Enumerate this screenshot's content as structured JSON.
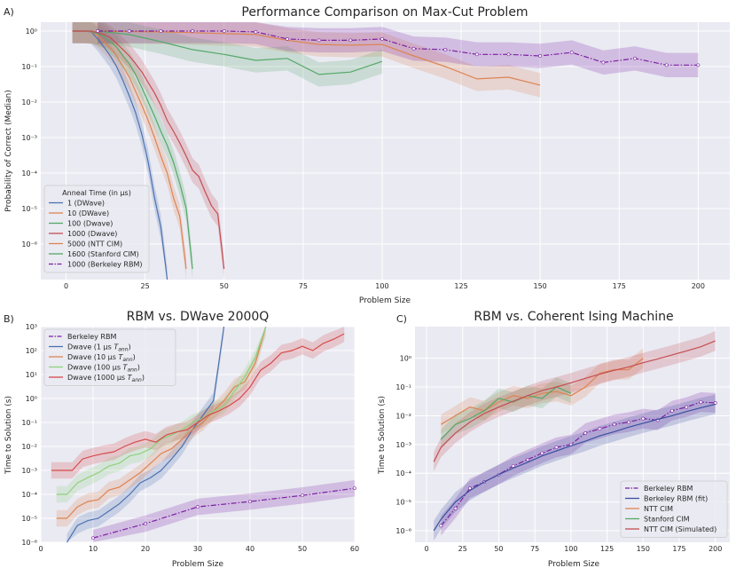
{
  "chart_data": [
    {
      "type": "line",
      "panel_label": "A)",
      "title": "Performance Comparison on Max-Cut Problem",
      "xlabel": "Problem Size",
      "ylabel": "Probability of Correct (Median)",
      "yscale": "log",
      "xlim": [
        -8,
        210
      ],
      "ylim_exp": [
        -7,
        0.25
      ],
      "xticks": [
        0,
        25,
        50,
        75,
        100,
        125,
        150,
        175,
        200
      ],
      "yticks_exp": [
        0,
        -1,
        -2,
        -3,
        -4,
        -5,
        -6
      ],
      "legend_title": "Anneal Time (in μs)",
      "legend_loc": "lower-left",
      "series": [
        {
          "name": "1 (DWave)",
          "color": "#4c72b0",
          "x": [
            2,
            4,
            6,
            8,
            10,
            12,
            14,
            16,
            18,
            20,
            22,
            24,
            26,
            28,
            30,
            32
          ],
          "y": [
            1,
            1,
            1,
            0.95,
            0.6,
            0.35,
            0.2,
            0.1,
            0.04,
            0.015,
            0.005,
            0.0012,
            0.0002,
            2e-05,
            3e-06,
            1e-07
          ]
        },
        {
          "name": "10 (DWave)",
          "color": "#dd8452",
          "x": [
            2,
            4,
            6,
            8,
            10,
            12,
            14,
            16,
            18,
            20,
            22,
            24,
            26,
            28,
            30,
            32,
            34,
            36,
            38
          ],
          "y": [
            1,
            1,
            1,
            0.97,
            0.75,
            0.5,
            0.33,
            0.2,
            0.1,
            0.05,
            0.02,
            0.008,
            0.003,
            0.001,
            0.0003,
            0.0001,
            2e-05,
            6e-06,
            2e-07
          ]
        },
        {
          "name": "100 (Dwave)",
          "color": "#55a868",
          "x": [
            2,
            4,
            6,
            8,
            10,
            12,
            14,
            16,
            18,
            20,
            22,
            24,
            26,
            28,
            30,
            32,
            34,
            36,
            38,
            40
          ],
          "y": [
            1,
            1,
            1,
            0.98,
            0.85,
            0.7,
            0.5,
            0.35,
            0.2,
            0.12,
            0.06,
            0.025,
            0.01,
            0.004,
            0.0015,
            0.0006,
            0.0002,
            5e-05,
            1e-05,
            2e-07
          ]
        },
        {
          "name": "1000 (Dwave)",
          "color": "#c44e52",
          "x": [
            2,
            4,
            6,
            8,
            10,
            12,
            14,
            16,
            18,
            20,
            22,
            24,
            26,
            28,
            30,
            32,
            34,
            36,
            38,
            40,
            42,
            44,
            46,
            48,
            50
          ],
          "y": [
            1,
            1,
            1,
            1,
            0.9,
            0.8,
            0.65,
            0.45,
            0.3,
            0.2,
            0.12,
            0.07,
            0.035,
            0.018,
            0.008,
            0.003,
            0.0015,
            0.0007,
            0.0003,
            0.00012,
            8e-05,
            3e-05,
            1.2e-05,
            7e-06,
            2e-07
          ]
        },
        {
          "name": "5000 (NTT CIM)",
          "color": "#dd8452",
          "x": [
            10,
            20,
            30,
            40,
            50,
            60,
            70,
            80,
            90,
            100,
            110,
            120,
            130,
            140,
            150
          ],
          "y": [
            1,
            0.97,
            0.95,
            0.9,
            0.85,
            0.8,
            0.55,
            0.42,
            0.4,
            0.42,
            0.2,
            0.1,
            0.045,
            0.05,
            0.03
          ]
        },
        {
          "name": "1600 (Stanford CIM)",
          "color": "#55a868",
          "x": [
            10,
            20,
            30,
            40,
            50,
            60,
            70,
            80,
            90,
            100
          ],
          "y": [
            1,
            0.8,
            0.5,
            0.3,
            0.22,
            0.15,
            0.17,
            0.06,
            0.07,
            0.14
          ]
        },
        {
          "name": "1000 (Berkeley RBM)",
          "color": "#7b1fa2",
          "dashed": true,
          "x": [
            10,
            20,
            30,
            40,
            50,
            60,
            70,
            80,
            90,
            100,
            110,
            120,
            130,
            140,
            150,
            160,
            170,
            180,
            190,
            200
          ],
          "y": [
            1,
            1,
            1,
            1,
            1,
            0.95,
            0.6,
            0.55,
            0.55,
            0.6,
            0.32,
            0.3,
            0.22,
            0.22,
            0.2,
            0.25,
            0.13,
            0.17,
            0.11,
            0.11
          ]
        }
      ]
    },
    {
      "type": "line",
      "panel_label": "B)",
      "title": "RBM vs. DWave 2000Q",
      "xlabel": "Problem Size",
      "ylabel": "Time to Solution (s)",
      "yscale": "log",
      "xlim": [
        0,
        60
      ],
      "ylim_exp": [
        -6,
        3
      ],
      "xticks": [
        0,
        10,
        20,
        30,
        40,
        50,
        60
      ],
      "yticks_exp": [
        -6,
        -5,
        -4,
        -3,
        -2,
        -1,
        0,
        1,
        2,
        3
      ],
      "legend_loc": "upper-left",
      "series": [
        {
          "name": "Berkeley RBM",
          "color": "#7b1fa2",
          "dashed": true,
          "x": [
            10,
            20,
            30,
            40,
            50,
            60
          ],
          "y": [
            1.5e-06,
            6e-06,
            3e-05,
            5e-05,
            9e-05,
            0.00018
          ]
        },
        {
          "name": "Dwave (1 μs T_ann)",
          "color": "#4c72b0",
          "x": [
            5,
            7,
            9,
            11,
            13,
            15,
            17,
            19,
            21,
            23,
            25,
            27,
            29,
            31,
            33,
            35
          ],
          "y": [
            1e-06,
            5e-06,
            8e-06,
            1e-05,
            2e-05,
            4e-05,
            0.0001,
            0.0003,
            0.0005,
            0.001,
            0.003,
            0.01,
            0.05,
            0.2,
            0.8,
            1000
          ]
        },
        {
          "name": "Dwave (10 μs T_ann)",
          "color": "#dd8452",
          "x": [
            3,
            5,
            7,
            9,
            11,
            13,
            15,
            17,
            19,
            21,
            23,
            25,
            27,
            29,
            31,
            33,
            35,
            37,
            39,
            41,
            43
          ],
          "y": [
            1e-05,
            1e-05,
            3e-05,
            5e-05,
            6e-05,
            0.00015,
            0.0002,
            0.0004,
            0.0008,
            0.002,
            0.005,
            0.008,
            0.02,
            0.05,
            0.1,
            0.3,
            0.8,
            3,
            5,
            30,
            1000
          ]
        },
        {
          "name": "Dwave (100 μs T_ann)",
          "color": "#8fd17f",
          "x": [
            3,
            5,
            7,
            9,
            11,
            13,
            15,
            17,
            19,
            21,
            23,
            25,
            27,
            29,
            31,
            33,
            35,
            37,
            39,
            41,
            43
          ],
          "y": [
            0.0001,
            0.0001,
            0.0003,
            0.0005,
            0.0008,
            0.0015,
            0.002,
            0.004,
            0.005,
            0.008,
            0.02,
            0.03,
            0.05,
            0.1,
            0.15,
            0.3,
            0.5,
            2,
            8,
            50,
            1000
          ]
        },
        {
          "name": "Dwave (1000 μs T_ann)",
          "color": "#d64b4b",
          "x": [
            2,
            4,
            6,
            8,
            10,
            12,
            14,
            16,
            18,
            20,
            22,
            24,
            26,
            28,
            30,
            32,
            34,
            36,
            38,
            40,
            42,
            44,
            46,
            48,
            50,
            52,
            54,
            56,
            58
          ],
          "y": [
            0.001,
            0.001,
            0.001,
            0.003,
            0.004,
            0.005,
            0.006,
            0.01,
            0.015,
            0.02,
            0.015,
            0.03,
            0.04,
            0.05,
            0.1,
            0.2,
            0.3,
            0.5,
            1,
            3,
            15,
            30,
            80,
            100,
            150,
            100,
            200,
            300,
            500
          ]
        }
      ]
    },
    {
      "type": "line",
      "panel_label": "C)",
      "title": "RBM vs. Coherent Ising Machine",
      "xlabel": "Problem Size",
      "ylabel": "Time to Solution (s)",
      "yscale": "log",
      "xlim": [
        -8,
        210
      ],
      "ylim_exp": [
        -6.4,
        1.1
      ],
      "xticks": [
        0,
        25,
        50,
        75,
        100,
        125,
        150,
        175,
        200
      ],
      "yticks_exp": [
        -6,
        -5,
        -4,
        -3,
        -2,
        -1,
        0
      ],
      "legend_loc": "lower-right",
      "series": [
        {
          "name": "Berkeley RBM",
          "color": "#7b1fa2",
          "dashed": true,
          "x": [
            10,
            20,
            30,
            40,
            50,
            60,
            70,
            80,
            90,
            100,
            110,
            120,
            130,
            140,
            150,
            160,
            170,
            180,
            190,
            200
          ],
          "y": [
            1.5e-06,
            6e-06,
            3e-05,
            5e-05,
            9e-05,
            0.00018,
            0.0003,
            0.0005,
            0.0008,
            0.001,
            0.0025,
            0.0035,
            0.005,
            0.006,
            0.008,
            0.007,
            0.015,
            0.02,
            0.03,
            0.028
          ]
        },
        {
          "name": "Berkeley RBM (fit)",
          "color": "#3a4fa0",
          "x": [
            5,
            10,
            20,
            30,
            40,
            50,
            60,
            70,
            80,
            90,
            100,
            110,
            120,
            130,
            140,
            150,
            160,
            170,
            180,
            190,
            200
          ],
          "y": [
            1e-06,
            2.5e-06,
            1e-05,
            2.5e-05,
            5e-05,
            9e-05,
            0.00015,
            0.00024,
            0.0004,
            0.0006,
            0.0009,
            0.0013,
            0.002,
            0.0028,
            0.004,
            0.0055,
            0.0075,
            0.01,
            0.014,
            0.019,
            0.025
          ]
        },
        {
          "name": "NTT CIM",
          "color": "#dd8452",
          "x": [
            10,
            20,
            30,
            40,
            50,
            60,
            70,
            80,
            90,
            100,
            110,
            120,
            130,
            140,
            150
          ],
          "y": [
            0.005,
            0.01,
            0.02,
            0.015,
            0.03,
            0.05,
            0.04,
            0.06,
            0.07,
            0.05,
            0.1,
            0.3,
            0.4,
            0.4,
            1
          ]
        },
        {
          "name": "Stanford CIM",
          "color": "#55a868",
          "x": [
            10,
            20,
            30,
            40,
            50,
            60,
            70,
            80,
            90,
            100
          ],
          "y": [
            0.0015,
            0.005,
            0.008,
            0.015,
            0.04,
            0.03,
            0.05,
            0.04,
            0.1,
            0.06
          ]
        },
        {
          "name": "NTT CIM (Simulated)",
          "color": "#c44e52",
          "x": [
            5,
            10,
            20,
            30,
            40,
            50,
            60,
            70,
            80,
            90,
            100,
            110,
            120,
            130,
            140,
            150,
            160,
            170,
            180,
            190,
            200
          ],
          "y": [
            0.00025,
            0.0008,
            0.0025,
            0.006,
            0.012,
            0.02,
            0.032,
            0.05,
            0.075,
            0.1,
            0.14,
            0.2,
            0.28,
            0.38,
            0.5,
            0.7,
            0.95,
            1.3,
            1.8,
            2.5,
            4
          ]
        }
      ]
    }
  ]
}
